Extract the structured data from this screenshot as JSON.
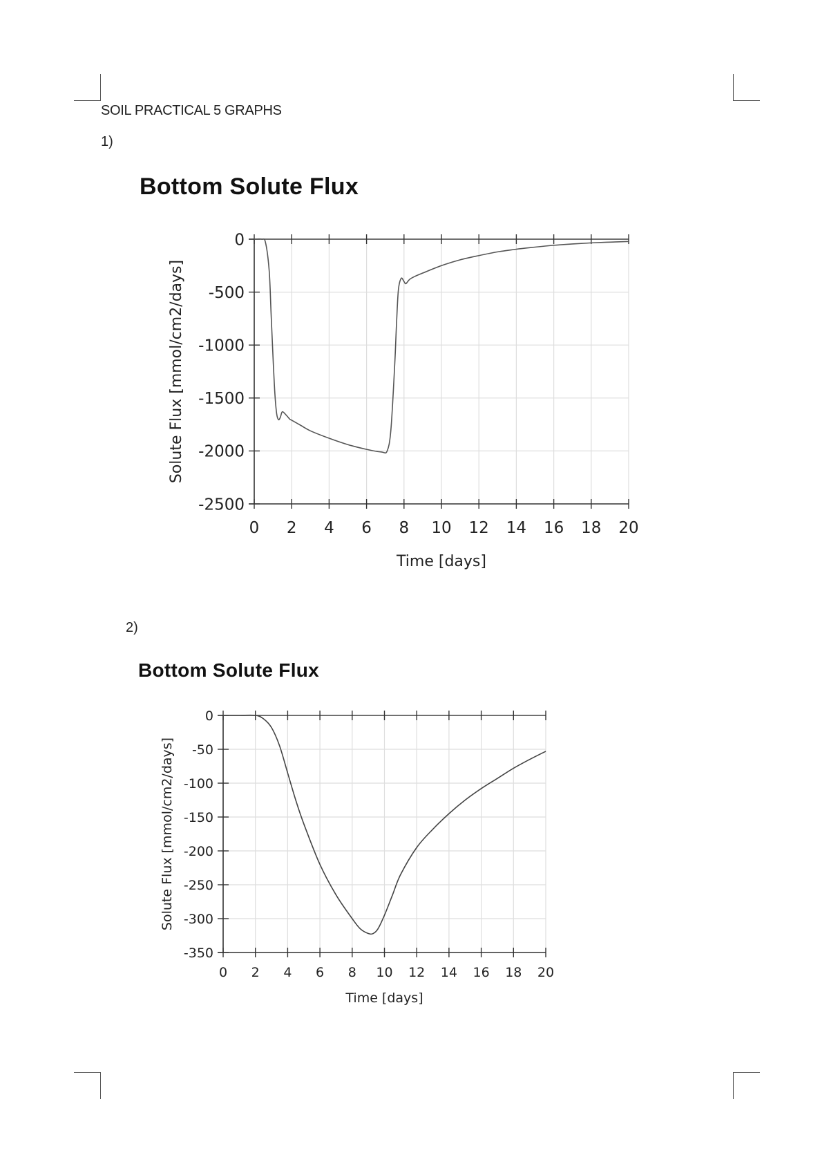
{
  "document": {
    "title": "SOIL PRACTICAL 5 GRAPHS",
    "sections": [
      {
        "label": "1)"
      },
      {
        "label": "2)"
      }
    ]
  },
  "chart_data": [
    {
      "type": "line",
      "title": "Bottom Solute Flux",
      "xlabel": "Time [days]",
      "ylabel": "Solute Flux [mmol/cm2/days]",
      "xlim": [
        0,
        20
      ],
      "ylim": [
        -2500,
        0
      ],
      "xticks": [
        0,
        2,
        4,
        6,
        8,
        10,
        12,
        14,
        16,
        18,
        20
      ],
      "yticks": [
        0,
        -500,
        -1000,
        -1500,
        -2000,
        -2500
      ],
      "ytick_labels": [
        "0",
        "-500",
        "-1000",
        "-1500",
        "-2000",
        "-2500"
      ],
      "grid": true,
      "legend": null,
      "line_color": "#555555",
      "x": [
        0,
        0.4,
        0.6,
        0.8,
        0.9,
        1.0,
        1.1,
        1.2,
        1.3,
        1.4,
        1.5,
        1.7,
        1.9,
        2.0,
        2.5,
        3.0,
        4.0,
        5.0,
        6.0,
        6.8,
        7.1,
        7.3,
        7.5,
        7.6,
        7.7,
        7.85,
        8.0,
        8.1,
        8.3,
        8.6,
        9.0,
        10.0,
        11.0,
        12.0,
        13.0,
        14.0,
        15.0,
        16.0,
        17.0,
        18.0,
        19.0,
        20.0
      ],
      "values": [
        0,
        0,
        -30,
        -300,
        -700,
        -1100,
        -1450,
        -1650,
        -1705,
        -1680,
        -1630,
        -1660,
        -1700,
        -1710,
        -1760,
        -1810,
        -1880,
        -1940,
        -1985,
        -2010,
        -2000,
        -1800,
        -1200,
        -800,
        -480,
        -370,
        -400,
        -420,
        -380,
        -350,
        -320,
        -250,
        -195,
        -155,
        -120,
        -95,
        -75,
        -58,
        -45,
        -35,
        -28,
        -22
      ]
    },
    {
      "type": "line",
      "title": "Bottom Solute Flux",
      "xlabel": "Time [days]",
      "ylabel": "Solute Flux [mmol/cm2/days]",
      "xlim": [
        0,
        20
      ],
      "ylim": [
        -350,
        0
      ],
      "xticks": [
        0,
        2,
        4,
        6,
        8,
        10,
        12,
        14,
        16,
        18,
        20
      ],
      "yticks": [
        0,
        -50,
        -100,
        -150,
        -200,
        -250,
        -300,
        -350
      ],
      "ytick_labels": [
        "0",
        "-50",
        "-100",
        "-150",
        "-200",
        "-250",
        "-300",
        "-350"
      ],
      "grid": true,
      "legend": null,
      "line_color": "#444444",
      "x": [
        0,
        1.0,
        2.0,
        2.5,
        3.0,
        3.5,
        4.0,
        4.5,
        5.0,
        6.0,
        7.0,
        8.0,
        8.5,
        9.0,
        9.3,
        9.6,
        10.0,
        10.5,
        11.0,
        12.0,
        13.0,
        14.0,
        15.0,
        16.0,
        17.0,
        18.0,
        19.0,
        20.0
      ],
      "values": [
        0,
        0,
        0,
        -5,
        -18,
        -45,
        -85,
        -125,
        -160,
        -220,
        -265,
        -300,
        -315,
        -322,
        -322,
        -315,
        -295,
        -265,
        -235,
        -195,
        -168,
        -145,
        -125,
        -108,
        -93,
        -78,
        -65,
        -53
      ]
    }
  ]
}
